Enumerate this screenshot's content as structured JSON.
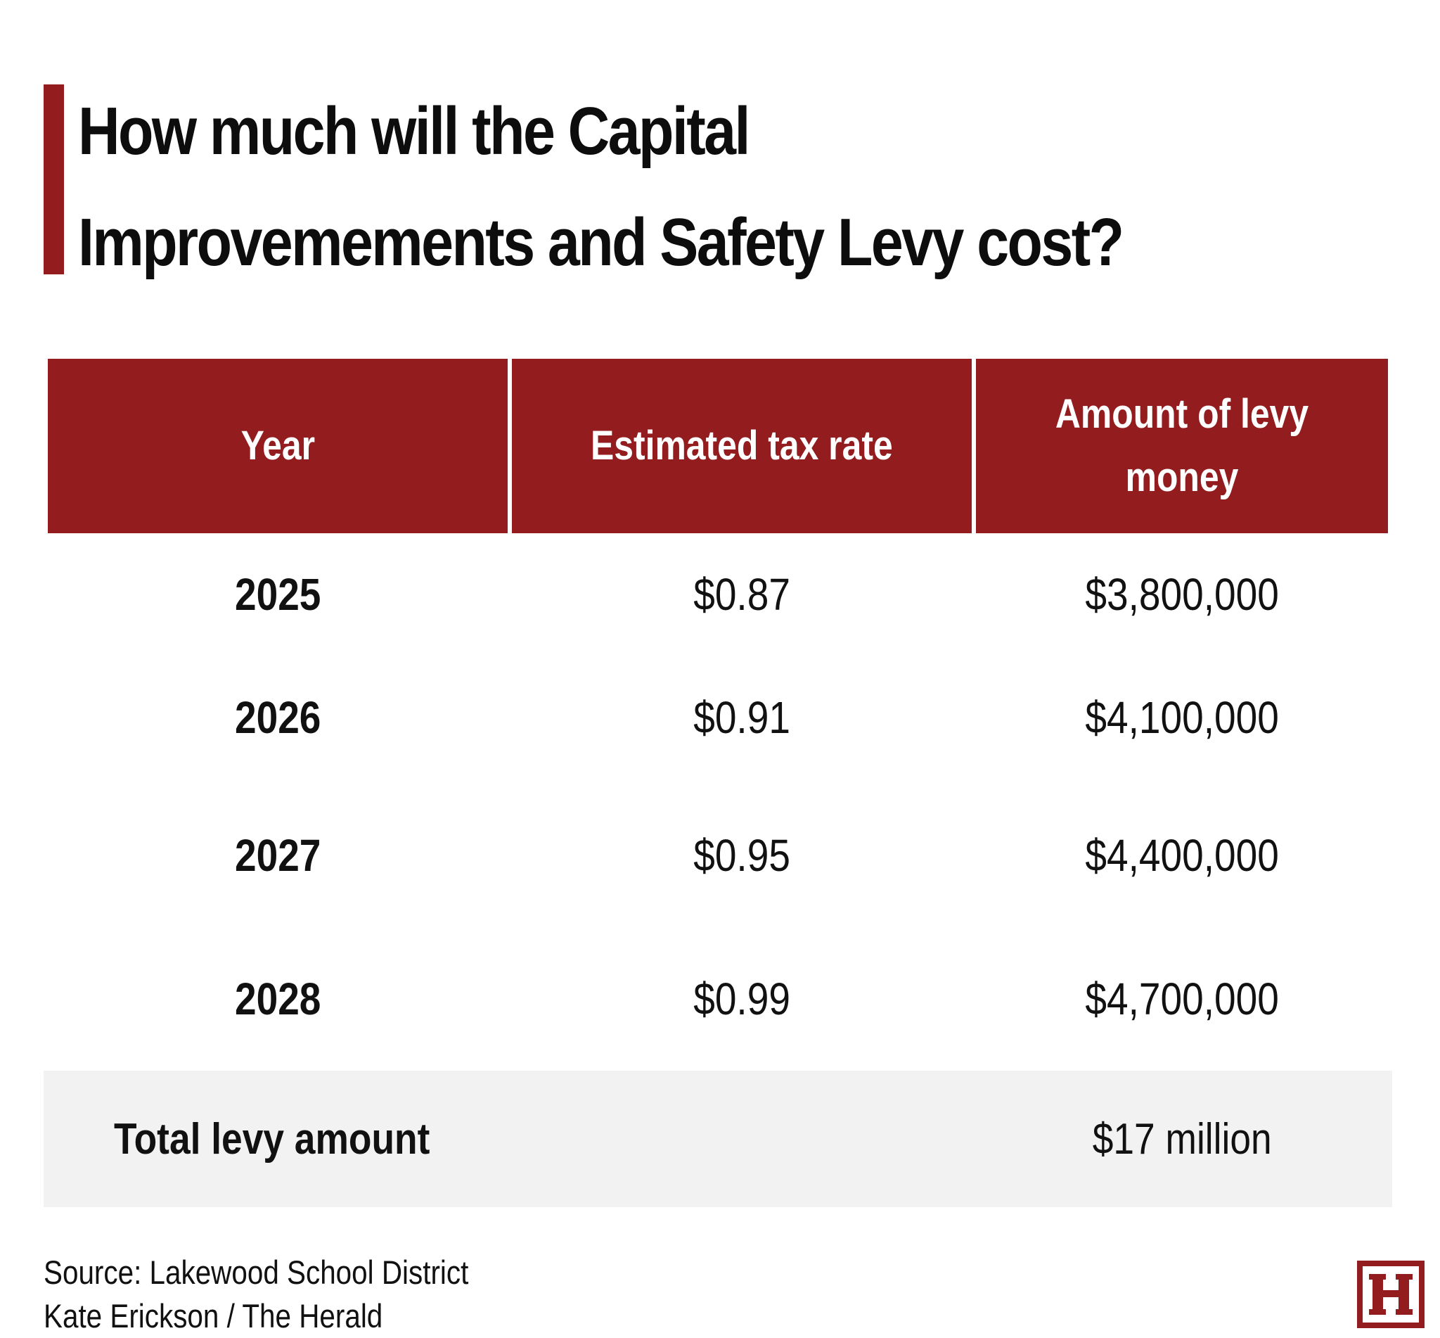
{
  "title": "How much will the Capital Improvemements and Safety Levy cost?",
  "colors": {
    "accent": "#931c1f",
    "total_row_bg": "#f1f2f1"
  },
  "logo": {
    "icon": "herald-h-logo",
    "text": "H"
  },
  "table": {
    "headers": [
      "Year",
      "Estimated tax rate",
      "Amount of levy money"
    ],
    "rows": [
      {
        "year": "2025",
        "rate": "$0.87",
        "amount": "$3,800,000"
      },
      {
        "year": "2026",
        "rate": "$0.91",
        "amount": "$4,100,000"
      },
      {
        "year": "2027",
        "rate": "$0.95",
        "amount": "$4,400,000"
      },
      {
        "year": "2028",
        "rate": "$0.99",
        "amount": "$4,700,000"
      }
    ],
    "total": {
      "label": "Total levy amount",
      "value": "$17 million"
    }
  },
  "footer": {
    "source": "Source: Lakewood School District",
    "credit": "Kate Erickson / The Herald"
  },
  "chart_data": {
    "type": "table",
    "title": "How much will the Capital Improvemements and Safety Levy cost?",
    "columns": [
      "Year",
      "Estimated tax rate",
      "Amount of levy money"
    ],
    "rows": [
      [
        "2025",
        "$0.87",
        "$3,800,000"
      ],
      [
        "2026",
        "$0.91",
        "$4,100,000"
      ],
      [
        "2027",
        "$0.95",
        "$4,400,000"
      ],
      [
        "2028",
        "$0.99",
        "$4,700,000"
      ]
    ],
    "total": [
      "Total levy amount",
      "",
      "$17 million"
    ]
  }
}
